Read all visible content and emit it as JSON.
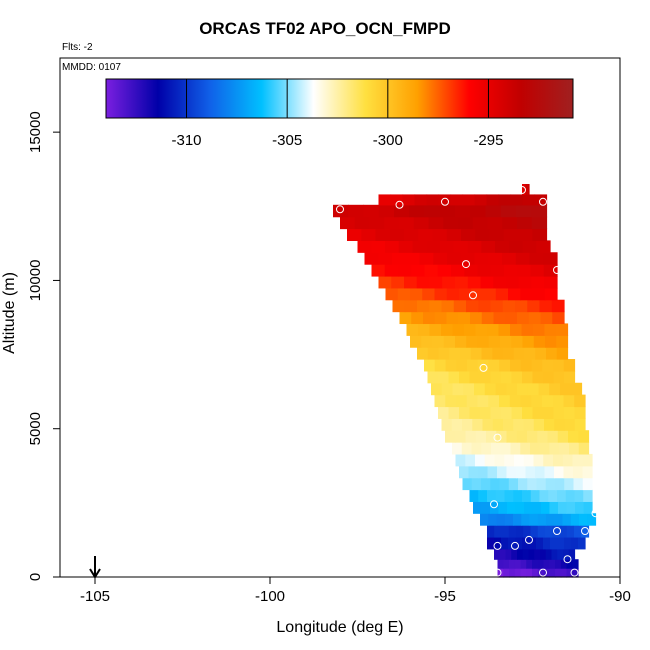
{
  "title": "ORCAS TF02 APO_OCN_FMPD",
  "flts_label": "Flts: -2",
  "mmdd_label": "MMDD: 0107",
  "chart_data": {
    "type": "heatmap",
    "title": "ORCAS TF02 APO_OCN_FMPD",
    "xlabel": "Longitude (deg E)",
    "ylabel": "Altitude (m)",
    "xlim": [
      -106,
      -90
    ],
    "ylim": [
      0,
      17500
    ],
    "x_ticks": [
      -105,
      -100,
      -95,
      -90
    ],
    "y_ticks": [
      0,
      5000,
      10000,
      15000
    ],
    "grid": false,
    "colorbar": {
      "min": -314,
      "max": -290.8,
      "ticks": [
        -310,
        -305,
        -300,
        -295
      ],
      "colors": [
        "#7b1fe0",
        "#0000a8",
        "#1060e8",
        "#00c0ff",
        "#ffffff",
        "#ffe040",
        "#ffa000",
        "#ff0000",
        "#c00000",
        "#a02020"
      ]
    },
    "rows": [
      {
        "alt": 150,
        "left": -93.5,
        "right": -91.2,
        "value": -312.5
      },
      {
        "alt": 450,
        "left": -93.5,
        "right": -91.2,
        "value": -311.5
      },
      {
        "alt": 750,
        "left": -93.6,
        "right": -91.3,
        "value": -310.6
      },
      {
        "alt": 1150,
        "left": -93.8,
        "right": -91.0,
        "value": -309.8
      },
      {
        "alt": 1550,
        "left": -93.8,
        "right": -90.9,
        "value": -309.0
      },
      {
        "alt": 1950,
        "left": -94.0,
        "right": -90.7,
        "value": -306.5
      },
      {
        "alt": 2350,
        "left": -94.2,
        "right": -90.8,
        "value": -305.5
      },
      {
        "alt": 2750,
        "left": -94.3,
        "right": -90.8,
        "value": -304.8
      },
      {
        "alt": 3150,
        "left": -94.5,
        "right": -90.8,
        "value": -304.0
      },
      {
        "alt": 3550,
        "left": -94.6,
        "right": -90.8,
        "value": -303.2
      },
      {
        "alt": 3950,
        "left": -94.7,
        "right": -90.8,
        "value": -302.5
      },
      {
        "alt": 4350,
        "left": -94.8,
        "right": -90.9,
        "value": -301.8
      },
      {
        "alt": 4750,
        "left": -95.0,
        "right": -90.9,
        "value": -301.2
      },
      {
        "alt": 5150,
        "left": -95.1,
        "right": -91.0,
        "value": -300.8
      },
      {
        "alt": 5550,
        "left": -95.2,
        "right": -91.0,
        "value": -300.5
      },
      {
        "alt": 5950,
        "left": -95.3,
        "right": -91.0,
        "value": -300.3
      },
      {
        "alt": 6350,
        "left": -95.4,
        "right": -91.1,
        "value": -300.1
      },
      {
        "alt": 6750,
        "left": -95.5,
        "right": -91.3,
        "value": -299.8
      },
      {
        "alt": 7150,
        "left": -95.6,
        "right": -91.3,
        "value": -299.4
      },
      {
        "alt": 7550,
        "left": -95.8,
        "right": -91.5,
        "value": -298.9
      },
      {
        "alt": 7950,
        "left": -96.0,
        "right": -91.5,
        "value": -298.3
      },
      {
        "alt": 8350,
        "left": -96.1,
        "right": -91.5,
        "value": -297.7
      },
      {
        "alt": 8750,
        "left": -96.3,
        "right": -91.6,
        "value": -297.1
      },
      {
        "alt": 9150,
        "left": -96.5,
        "right": -91.6,
        "value": -296.5
      },
      {
        "alt": 9550,
        "left": -96.7,
        "right": -91.8,
        "value": -295.8
      },
      {
        "alt": 9950,
        "left": -96.9,
        "right": -91.8,
        "value": -295.2
      },
      {
        "alt": 10350,
        "left": -97.1,
        "right": -91.8,
        "value": -294.7
      },
      {
        "alt": 10750,
        "left": -97.3,
        "right": -91.8,
        "value": -294.2
      },
      {
        "alt": 11150,
        "left": -97.5,
        "right": -92.0,
        "value": -293.8
      },
      {
        "alt": 11550,
        "left": -97.8,
        "right": -92.1,
        "value": -293.4
      },
      {
        "alt": 11950,
        "left": -98.0,
        "right": -92.1,
        "value": -293.0
      },
      {
        "alt": 12350,
        "left": -98.2,
        "right": -92.1,
        "value": -292.6
      },
      {
        "alt": 12750,
        "left": -96.9,
        "right": -92.1,
        "value": -293.2
      },
      {
        "alt": 13050,
        "left": -92.8,
        "right": -92.6,
        "value": -293.5
      }
    ],
    "points": [
      {
        "lon": -93.5,
        "alt": 150
      },
      {
        "lon": -92.2,
        "alt": 150
      },
      {
        "lon": -91.3,
        "alt": 150
      },
      {
        "lon": -91.5,
        "alt": 600
      },
      {
        "lon": -93.5,
        "alt": 1050
      },
      {
        "lon": -93.0,
        "alt": 1050
      },
      {
        "lon": -92.6,
        "alt": 1250
      },
      {
        "lon": -91.8,
        "alt": 1550
      },
      {
        "lon": -91.0,
        "alt": 1550
      },
      {
        "lon": -93.6,
        "alt": 2450
      },
      {
        "lon": -90.7,
        "alt": 2150
      },
      {
        "lon": -93.5,
        "alt": 4700
      },
      {
        "lon": -93.9,
        "alt": 7050
      },
      {
        "lon": -94.2,
        "alt": 9500
      },
      {
        "lon": -94.4,
        "alt": 10550
      },
      {
        "lon": -91.8,
        "alt": 10350
      },
      {
        "lon": -96.3,
        "alt": 12550
      },
      {
        "lon": -95.0,
        "alt": 12650
      },
      {
        "lon": -92.2,
        "alt": 12650
      },
      {
        "lon": -92.8,
        "alt": 13050
      },
      {
        "lon": -98.0,
        "alt": 12400
      }
    ],
    "arrow_lon": -105
  }
}
